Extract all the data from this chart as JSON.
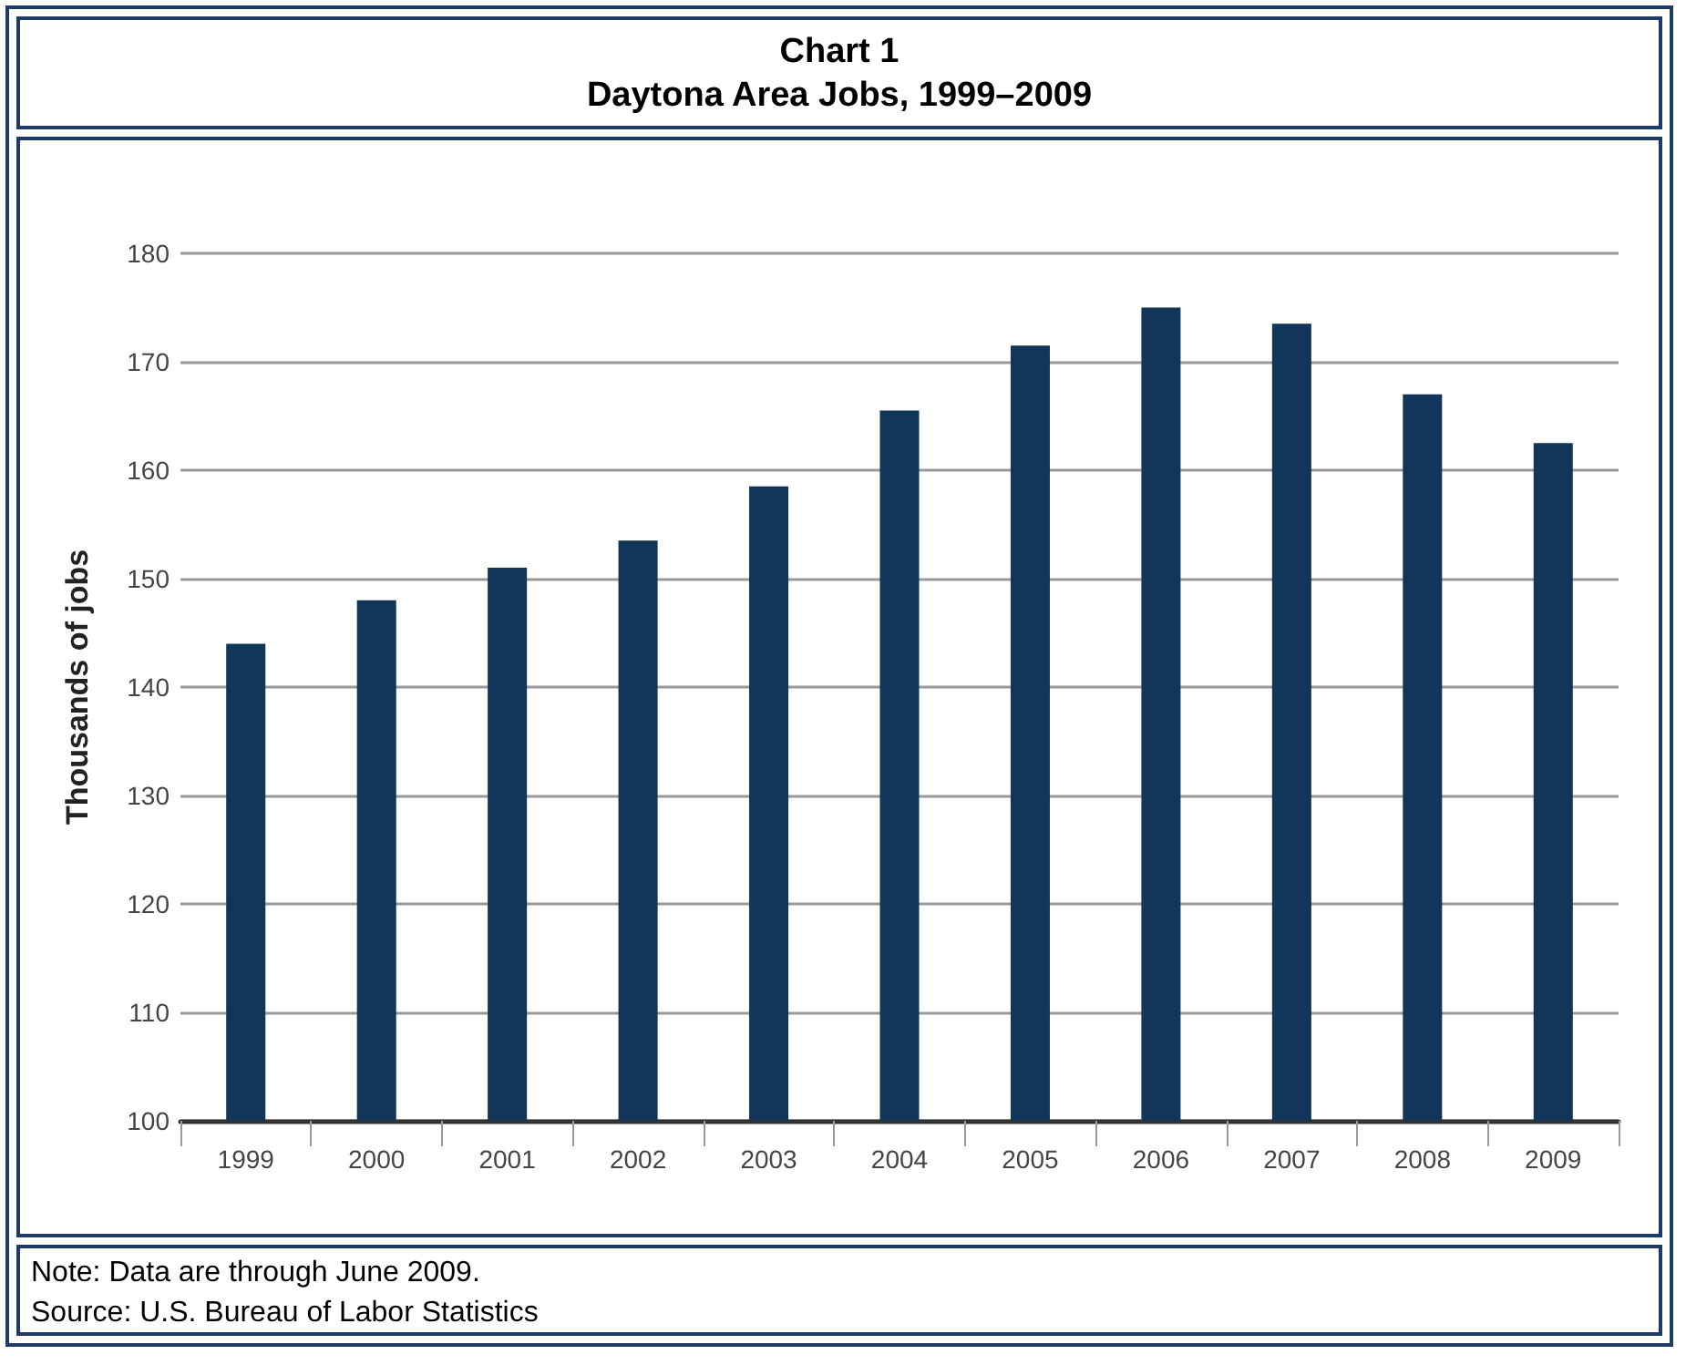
{
  "chart_data": {
    "type": "bar",
    "title": "Chart 1",
    "subtitle": "Daytona Area Jobs, 1999–2009",
    "ylabel": "Thousands of jobs",
    "categories": [
      "1999",
      "2000",
      "2001",
      "2002",
      "2003",
      "2004",
      "2005",
      "2006",
      "2007",
      "2008",
      "2009"
    ],
    "values": [
      144,
      148,
      151,
      153.5,
      158.5,
      165.5,
      171.5,
      175,
      173.5,
      167,
      162.5
    ],
    "color": "#11365a",
    "ylim": [
      100,
      180
    ],
    "yticks": [
      100,
      110,
      120,
      130,
      140,
      150,
      160,
      170,
      180
    ],
    "grid": "y",
    "annotations": [
      "Note: Data are through June 2009.",
      "Source: U.S. Bureau of Labor Statistics"
    ]
  }
}
